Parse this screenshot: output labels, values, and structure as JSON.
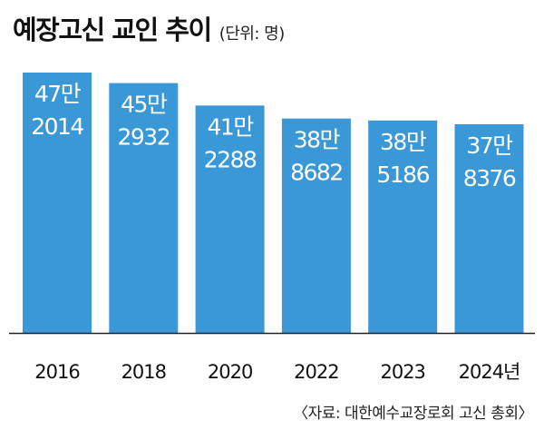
{
  "title": "예장고신 교인 추이",
  "unit_label": "(단위: 명)",
  "source": "〈자료: 대한예수교장로회 고신 총회〉",
  "colors": {
    "bar": "#3a98d6",
    "axis": "#222222",
    "bar_text": "#ffffff"
  },
  "chart_data": {
    "type": "bar",
    "title": "예장고신 교인 추이",
    "unit": "명",
    "categories": [
      "2016",
      "2018",
      "2020",
      "2022",
      "2023",
      "2024년"
    ],
    "values": [
      472014,
      452932,
      412288,
      388682,
      385186,
      378376
    ],
    "bar_labels": [
      [
        "47만",
        "2014"
      ],
      [
        "45만",
        "2932"
      ],
      [
        "41만",
        "2288"
      ],
      [
        "38만",
        "8682"
      ],
      [
        "38만",
        "5186"
      ],
      [
        "37만",
        "8376"
      ]
    ]
  }
}
